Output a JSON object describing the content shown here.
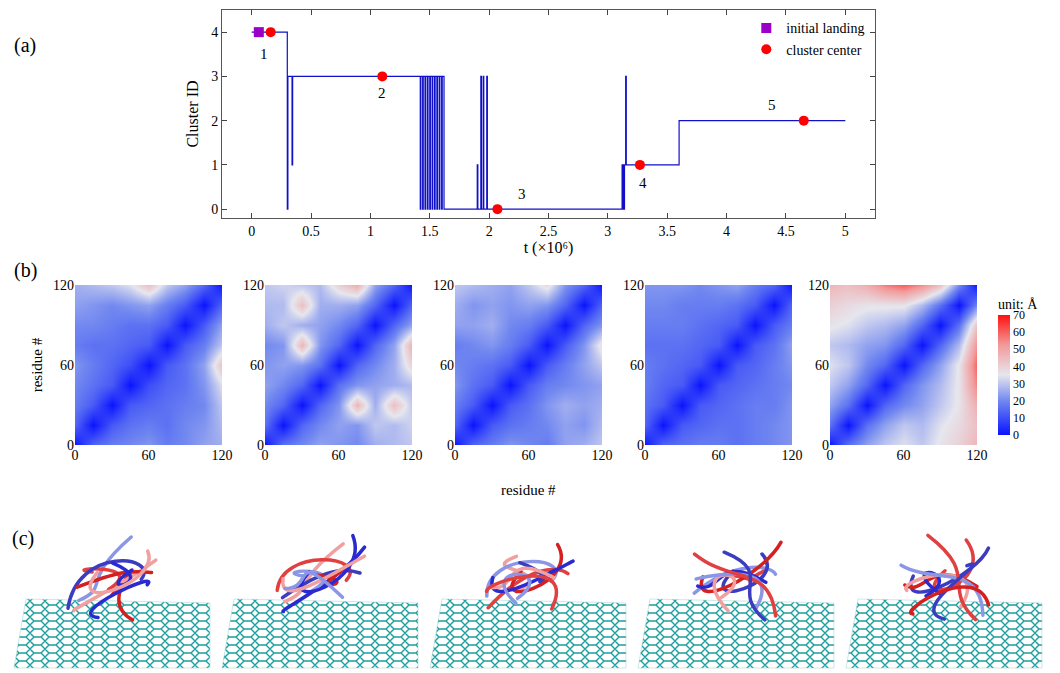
{
  "chart_data": [
    {
      "panel": "(a)",
      "type": "line",
      "x_label": "t (×10⁶)",
      "y_label": "Cluster ID",
      "xlim": [
        -0.25,
        5.25
      ],
      "ylim": [
        -0.2,
        4.5
      ],
      "xticks": [
        0,
        0.5,
        1,
        1.5,
        2,
        2.5,
        3,
        3.5,
        4,
        4.5,
        5
      ],
      "yticks": [
        0,
        1,
        2,
        3,
        4
      ],
      "grid": false,
      "legend": "upper right",
      "series": [
        {
          "color": "#1010c8",
          "line_style": "step",
          "type": "line",
          "x": [
            0,
            0.3,
            0.305,
            0.34,
            0.345,
            1.42,
            1.425,
            1.44,
            1.445,
            1.46,
            1.465,
            1.48,
            1.485,
            1.5,
            1.505,
            1.52,
            1.525,
            1.54,
            1.545,
            1.56,
            1.565,
            1.58,
            1.585,
            1.6,
            1.605,
            1.62,
            1.9,
            1.905,
            1.93,
            1.935,
            1.95,
            1.955,
            1.98,
            1.985,
            3.12,
            3.13,
            3.14,
            3.15,
            3.155,
            3.6,
            5.0
          ],
          "values": [
            4,
            0,
            3,
            1,
            3,
            0,
            3,
            0,
            3,
            0,
            3,
            0,
            3,
            0,
            3,
            0,
            3,
            0,
            3,
            0,
            3,
            0,
            3,
            0,
            3,
            0,
            1,
            0,
            3,
            0,
            3,
            0,
            3,
            0,
            1,
            0,
            1,
            3,
            1,
            2,
            2
          ]
        },
        {
          "name": "initial landing",
          "type": "scatter",
          "marker": "square",
          "color": "#9b00c8",
          "x": [
            0.06
          ],
          "values": [
            4
          ]
        },
        {
          "name": "cluster center",
          "type": "scatter",
          "marker": "circle",
          "color": "#ff0000",
          "x": [
            0.16,
            1.1,
            2.07,
            3.27,
            4.65
          ],
          "values": [
            4,
            3,
            0,
            1,
            2
          ]
        }
      ],
      "annotations": [
        {
          "text": "1",
          "x": 0.1,
          "y": 3.5
        },
        {
          "text": "2",
          "x": 1.1,
          "y": 2.62
        },
        {
          "text": "3",
          "x": 2.28,
          "y": 0.35
        },
        {
          "text": "4",
          "x": 3.3,
          "y": 0.6
        },
        {
          "text": "5",
          "x": 4.38,
          "y": 2.35
        }
      ]
    },
    {
      "panel": "(b)",
      "type": "heatmap",
      "x": [
        0,
        15,
        30,
        45,
        60,
        75,
        90,
        105,
        120
      ],
      "y": [
        0,
        15,
        30,
        45,
        60,
        75,
        90,
        105,
        120
      ],
      "xlim": [
        0,
        120
      ],
      "ylim": [
        0,
        120
      ],
      "xticks": [
        0,
        60,
        120
      ],
      "yticks": [
        0,
        60,
        120
      ],
      "x_label": "residue #",
      "y_label": "residue #",
      "colorbar": {
        "title": "unit: Å",
        "range": [
          0,
          70
        ],
        "ticks": [
          0,
          10,
          20,
          30,
          40,
          50,
          60,
          70
        ]
      },
      "panels": [
        {
          "cells": [
            [
              0,
              14,
              18,
              20,
              22,
              18,
              20,
              24,
              26
            ],
            [
              14,
              0,
              12,
              16,
              18,
              16,
              20,
              22,
              28
            ],
            [
              18,
              12,
              0,
              12,
              14,
              16,
              18,
              20,
              30
            ],
            [
              20,
              16,
              12,
              0,
              10,
              14,
              16,
              22,
              34
            ],
            [
              22,
              18,
              14,
              10,
              0,
              12,
              16,
              24,
              44
            ],
            [
              18,
              16,
              16,
              14,
              12,
              0,
              12,
              18,
              30
            ],
            [
              20,
              20,
              18,
              16,
              16,
              12,
              0,
              12,
              24
            ],
            [
              24,
              22,
              20,
              22,
              24,
              18,
              12,
              0,
              14
            ],
            [
              26,
              28,
              30,
              34,
              44,
              30,
              24,
              14,
              0
            ]
          ]
        },
        {
          "cells": [
            [
              0,
              16,
              20,
              24,
              22,
              20,
              26,
              28,
              30
            ],
            [
              16,
              0,
              14,
              20,
              24,
              22,
              30,
              28,
              32
            ],
            [
              20,
              14,
              0,
              14,
              22,
              46,
              26,
              44,
              30
            ],
            [
              24,
              20,
              14,
              0,
              16,
              22,
              24,
              26,
              28
            ],
            [
              22,
              24,
              22,
              16,
              0,
              14,
              20,
              26,
              40
            ],
            [
              20,
              22,
              46,
              22,
              14,
              0,
              14,
              24,
              48
            ],
            [
              26,
              30,
              26,
              24,
              20,
              14,
              0,
              14,
              24
            ],
            [
              28,
              28,
              44,
              26,
              26,
              24,
              14,
              0,
              14
            ],
            [
              30,
              32,
              30,
              28,
              40,
              48,
              24,
              14,
              0
            ]
          ]
        },
        {
          "cells": [
            [
              0,
              14,
              18,
              22,
              20,
              18,
              24,
              26,
              30
            ],
            [
              14,
              0,
              12,
              16,
              18,
              20,
              24,
              22,
              28
            ],
            [
              18,
              12,
              0,
              12,
              16,
              22,
              26,
              24,
              26
            ],
            [
              22,
              16,
              12,
              0,
              12,
              18,
              20,
              22,
              24
            ],
            [
              20,
              18,
              16,
              12,
              0,
              12,
              18,
              24,
              30
            ],
            [
              18,
              20,
              22,
              18,
              12,
              0,
              12,
              22,
              38
            ],
            [
              24,
              24,
              26,
              20,
              18,
              12,
              0,
              14,
              22
            ],
            [
              26,
              22,
              24,
              22,
              24,
              22,
              14,
              0,
              14
            ],
            [
              30,
              28,
              26,
              24,
              30,
              38,
              22,
              14,
              0
            ]
          ]
        },
        {
          "cells": [
            [
              0,
              14,
              16,
              18,
              18,
              16,
              18,
              20,
              22
            ],
            [
              14,
              0,
              12,
              14,
              16,
              16,
              18,
              20,
              22
            ],
            [
              16,
              12,
              0,
              12,
              14,
              16,
              18,
              18,
              22
            ],
            [
              18,
              14,
              12,
              0,
              12,
              14,
              16,
              18,
              20
            ],
            [
              18,
              16,
              14,
              12,
              0,
              12,
              14,
              18,
              22
            ],
            [
              16,
              16,
              16,
              14,
              12,
              0,
              12,
              16,
              24
            ],
            [
              18,
              18,
              18,
              16,
              14,
              12,
              0,
              12,
              18
            ],
            [
              20,
              20,
              18,
              18,
              18,
              16,
              12,
              0,
              14
            ],
            [
              22,
              22,
              22,
              20,
              22,
              24,
              18,
              14,
              0
            ]
          ]
        },
        {
          "cells": [
            [
              0,
              16,
              24,
              30,
              34,
              30,
              36,
              40,
              46
            ],
            [
              16,
              0,
              16,
              24,
              30,
              28,
              34,
              38,
              44
            ],
            [
              24,
              16,
              0,
              14,
              20,
              24,
              30,
              36,
              48
            ],
            [
              30,
              24,
              14,
              0,
              14,
              22,
              28,
              36,
              56
            ],
            [
              34,
              30,
              20,
              14,
              0,
              14,
              24,
              36,
              60
            ],
            [
              30,
              28,
              24,
              22,
              14,
              0,
              14,
              28,
              54
            ],
            [
              36,
              34,
              30,
              28,
              24,
              14,
              0,
              16,
              44
            ],
            [
              40,
              38,
              36,
              36,
              36,
              28,
              16,
              0,
              20
            ],
            [
              46,
              44,
              48,
              56,
              60,
              54,
              44,
              20,
              0
            ]
          ]
        }
      ]
    },
    {
      "panel": "(c)",
      "type": "illustration",
      "count": 5
    }
  ]
}
